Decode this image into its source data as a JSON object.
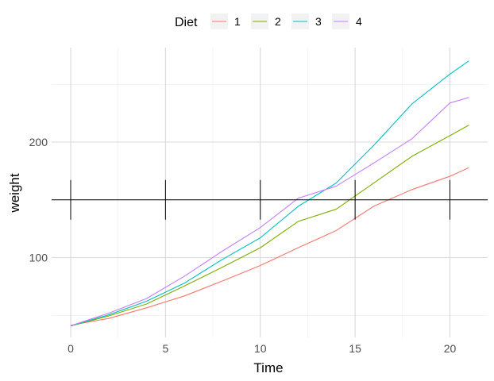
{
  "chart_data": {
    "type": "line",
    "xlabel": "Time",
    "ylabel": "weight",
    "x": [
      0,
      2,
      4,
      6,
      8,
      10,
      12,
      14,
      16,
      18,
      20,
      21
    ],
    "xlim": [
      -1,
      22
    ],
    "ylim": [
      35,
      275
    ],
    "x_ticks": [
      0,
      5,
      10,
      15,
      20
    ],
    "y_ticks": [
      100,
      200
    ],
    "y_minor_gridlines": [
      50,
      150,
      250
    ],
    "x_minor_gridlines": [
      2.5,
      7.5,
      12.5,
      17.5
    ],
    "grid": true,
    "legend": {
      "title": "Diet",
      "placement": "top"
    },
    "series": [
      {
        "name": "1",
        "color": "#F8766D",
        "values": [
          41.4,
          47.3,
          56.5,
          66.8,
          79.7,
          93.1,
          108.5,
          123.4,
          144.6,
          158.9,
          170.4,
          177.8
        ]
      },
      {
        "name": "2",
        "color": "#7CAE00",
        "values": [
          40.7,
          49.4,
          59.8,
          75.4,
          91.7,
          108.5,
          131.3,
          141.9,
          164.7,
          187.7,
          205.6,
          214.7
        ]
      },
      {
        "name": "3",
        "color": "#00BFC4",
        "values": [
          40.8,
          50.4,
          62.2,
          77.9,
          98.4,
          117.1,
          144.4,
          164.5,
          197.4,
          233.1,
          258.9,
          270.3
        ]
      },
      {
        "name": "4",
        "color": "#C77CFF",
        "values": [
          41.0,
          51.8,
          64.5,
          83.9,
          105.6,
          126.0,
          151.4,
          161.8,
          182.0,
          202.9,
          233.9,
          238.6
        ]
      }
    ],
    "annotation": {
      "type": "horizontal-line-with-ticks",
      "y": 150,
      "tick_x": [
        0,
        5,
        10,
        15,
        20
      ],
      "tick_half_height": 12
    }
  }
}
